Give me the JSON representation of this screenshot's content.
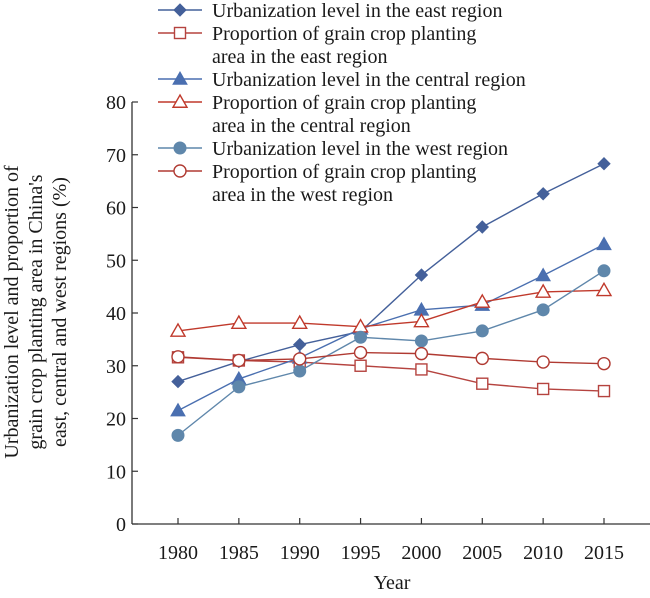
{
  "chart_data": {
    "type": "line",
    "x": [
      1980,
      1985,
      1990,
      1995,
      2000,
      2005,
      2010,
      2015
    ],
    "xlabel": "Year",
    "ylabel_lines": [
      "Urbanization level and proportion of",
      "grain crop planting area in China's",
      "east, central and west regions (%)"
    ],
    "ylim": [
      0,
      80
    ],
    "yticks": [
      0,
      10,
      20,
      30,
      40,
      50,
      60,
      70,
      80
    ],
    "grid": false,
    "legend_placement": "top",
    "series": [
      {
        "name_lines": [
          "Urbanization level in the east region"
        ],
        "values": [
          27.0,
          30.8,
          34.0,
          36.5,
          47.2,
          56.3,
          62.6,
          68.3
        ],
        "color": "#44609a",
        "marker": "diamond-filled"
      },
      {
        "name_lines": [
          "Proportion of grain crop planting",
          "area in the east region"
        ],
        "values": [
          31.6,
          31.0,
          30.7,
          30.0,
          29.3,
          26.6,
          25.6,
          25.2
        ],
        "color": "#b5433f",
        "marker": "square-open"
      },
      {
        "name_lines": [
          "Urbanization level in the central region"
        ],
        "values": [
          21.5,
          27.5,
          31.5,
          37.0,
          40.6,
          41.5,
          47.1,
          53.0
        ],
        "color": "#4a6fb0",
        "marker": "triangle-filled"
      },
      {
        "name_lines": [
          "Proportion of grain crop planting",
          "area in the central region"
        ],
        "values": [
          36.6,
          38.1,
          38.1,
          37.4,
          38.4,
          42.1,
          44.0,
          44.3
        ],
        "color": "#c0392b",
        "marker": "triangle-open"
      },
      {
        "name_lines": [
          "Urbanization level in the west region"
        ],
        "values": [
          16.8,
          26.0,
          29.0,
          35.4,
          34.7,
          36.6,
          40.6,
          48.0
        ],
        "color": "#5f87ab",
        "marker": "circle-filled"
      },
      {
        "name_lines": [
          "Proportion of grain crop planting",
          "area in the west region"
        ],
        "values": [
          31.7,
          31.0,
          31.3,
          32.5,
          32.3,
          31.4,
          30.7,
          30.4
        ],
        "color": "#b03a32",
        "marker": "circle-open"
      }
    ]
  }
}
